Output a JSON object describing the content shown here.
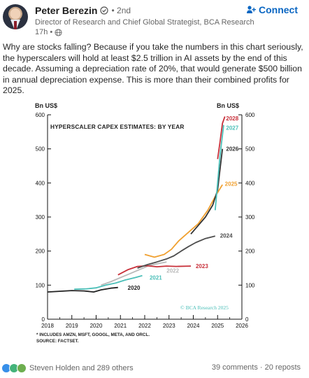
{
  "author": {
    "name": "Peter Berezin",
    "degree": "• 2nd",
    "title": "Director of Research and Chief Global Strategist, BCA Research",
    "time": "17h •"
  },
  "actions": {
    "connect_label": "Connect"
  },
  "post": {
    "text": "Why are stocks falling? Because if you take the numbers in this chart seriously, the hyperscalers will hold at least $2.5 trillion in AI assets by the end of this decade. Assuming a depreciation rate of 20%, that would generate $500 billion in annual depreciation expense. This is more than their combined profits for 2025."
  },
  "chart": {
    "inner_title": "HYPERSCALER CAPEX ESTIMATES: BY YEAR",
    "unit_left": "Bn US$",
    "unit_right": "Bn US$",
    "footnote_1": "* INCLUDES AMZN, MSFT, GOOGL, META, AND ORCL.",
    "footnote_2": "SOURCE: FACTSET.",
    "watermark": "© BCA Research 2025"
  },
  "chart_data": {
    "type": "line",
    "title": "HYPERSCALER CAPEX ESTIMATES: BY YEAR",
    "ylabel": "Bn US$",
    "ylim": [
      0,
      600
    ],
    "yticks": [
      0,
      100,
      200,
      300,
      400,
      500,
      600
    ],
    "xlim": [
      2018,
      2026
    ],
    "xticks": [
      "2018",
      "2019",
      "2020",
      "2021",
      "2022",
      "2023",
      "2024",
      "2025",
      "2026"
    ],
    "series": [
      {
        "name": "2020",
        "color": "#222222",
        "points": [
          [
            2018.0,
            80
          ],
          [
            2018.5,
            82
          ],
          [
            2019.0,
            84
          ],
          [
            2019.5,
            83
          ],
          [
            2019.9,
            80
          ],
          [
            2020.2,
            86
          ],
          [
            2020.6,
            91
          ],
          [
            2020.9,
            93
          ]
        ]
      },
      {
        "name": "2021",
        "color": "#4bbfb8",
        "points": [
          [
            2019.1,
            88
          ],
          [
            2019.6,
            89
          ],
          [
            2020.0,
            92
          ],
          [
            2020.4,
            100
          ],
          [
            2020.8,
            106
          ],
          [
            2021.2,
            115
          ],
          [
            2021.6,
            122
          ],
          [
            2021.9,
            128
          ]
        ]
      },
      {
        "name": "2022",
        "color": "#b9b9b9",
        "points": [
          [
            2020.2,
            100
          ],
          [
            2020.6,
            110
          ],
          [
            2021.0,
            122
          ],
          [
            2021.4,
            134
          ],
          [
            2021.8,
            146
          ],
          [
            2022.2,
            158
          ],
          [
            2022.6,
            164
          ],
          [
            2022.9,
            168
          ]
        ]
      },
      {
        "name": "2023",
        "color": "#c8303a",
        "points": [
          [
            2020.9,
            130
          ],
          [
            2021.3,
            145
          ],
          [
            2021.7,
            155
          ],
          [
            2022.1,
            157
          ],
          [
            2022.5,
            154
          ],
          [
            2022.9,
            156
          ],
          [
            2023.3,
            155
          ],
          [
            2023.9,
            156
          ]
        ]
      },
      {
        "name": "2024",
        "color": "#4d4d4d",
        "points": [
          [
            2021.7,
            150
          ],
          [
            2022.1,
            160
          ],
          [
            2022.5,
            168
          ],
          [
            2022.9,
            177
          ],
          [
            2023.2,
            186
          ],
          [
            2023.5,
            200
          ],
          [
            2023.8,
            213
          ],
          [
            2024.1,
            225
          ],
          [
            2024.5,
            237
          ],
          [
            2024.9,
            244
          ]
        ]
      },
      {
        "name": "2025",
        "color": "#f0a030",
        "points": [
          [
            2022.0,
            190
          ],
          [
            2022.4,
            182
          ],
          [
            2022.8,
            190
          ],
          [
            2023.1,
            205
          ],
          [
            2023.4,
            230
          ],
          [
            2023.8,
            255
          ],
          [
            2024.2,
            280
          ],
          [
            2024.6,
            320
          ],
          [
            2024.9,
            360
          ],
          [
            2025.2,
            395
          ]
        ]
      },
      {
        "name": "2026",
        "color": "#333333",
        "points": [
          [
            2023.9,
            250
          ],
          [
            2024.2,
            275
          ],
          [
            2024.5,
            300
          ],
          [
            2024.8,
            335
          ],
          [
            2025.0,
            380
          ],
          [
            2025.1,
            440
          ],
          [
            2025.2,
            500
          ]
        ]
      },
      {
        "name": "2027",
        "color": "#4bbfb8",
        "points": [
          [
            2024.9,
            320
          ],
          [
            2025.0,
            400
          ],
          [
            2025.1,
            480
          ],
          [
            2025.25,
            570
          ]
        ]
      },
      {
        "name": "2028",
        "color": "#c8303a",
        "points": [
          [
            2025.0,
            470
          ],
          [
            2025.1,
            520
          ],
          [
            2025.2,
            575
          ],
          [
            2025.3,
            595
          ]
        ]
      }
    ]
  },
  "footer": {
    "reactions_text": "Steven Holden and 289 others",
    "counts_text": "39 comments · 20 reposts"
  },
  "colors": {
    "accent": "#0a66c2",
    "series_red": "#c8303a",
    "series_teal": "#4bbfb8",
    "series_orange": "#f0a030",
    "series_dark": "#333333",
    "series_gray": "#b9b9b9"
  },
  "icons": {
    "verified": "verified-shield-icon",
    "globe": "globe-icon",
    "connect": "add-person-icon"
  }
}
